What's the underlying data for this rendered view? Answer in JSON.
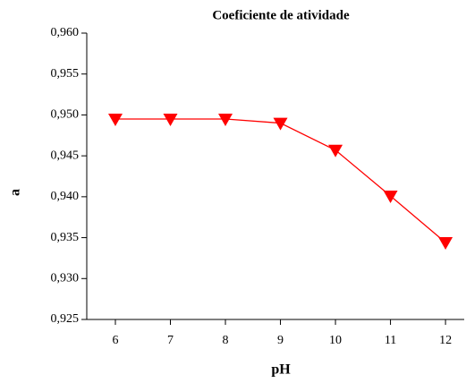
{
  "chart_data": {
    "type": "line",
    "title": "Coeficiente de atividade",
    "xlabel": "pH",
    "ylabel": "a",
    "x": [
      6,
      7,
      8,
      9,
      10,
      11,
      12
    ],
    "values": [
      0.9495,
      0.9495,
      0.9495,
      0.949,
      0.9457,
      0.9401,
      0.9344
    ],
    "color": "#ff0000",
    "marker": "triangle-down",
    "xlim": [
      5.48,
      12.34
    ],
    "xticks": [
      6,
      7,
      8,
      9,
      10,
      11,
      12
    ],
    "ylim": [
      0.925,
      0.96
    ],
    "yticks": [
      {
        "value": 0.925,
        "label": "0,925"
      },
      {
        "value": 0.93,
        "label": "0,930"
      },
      {
        "value": 0.935,
        "label": "0,935"
      },
      {
        "value": 0.94,
        "label": "0,940"
      },
      {
        "value": 0.945,
        "label": "0,945"
      },
      {
        "value": 0.95,
        "label": "0,950"
      },
      {
        "value": 0.955,
        "label": "0,955"
      },
      {
        "value": 0.96,
        "label": "0,960"
      }
    ],
    "grid": false
  }
}
